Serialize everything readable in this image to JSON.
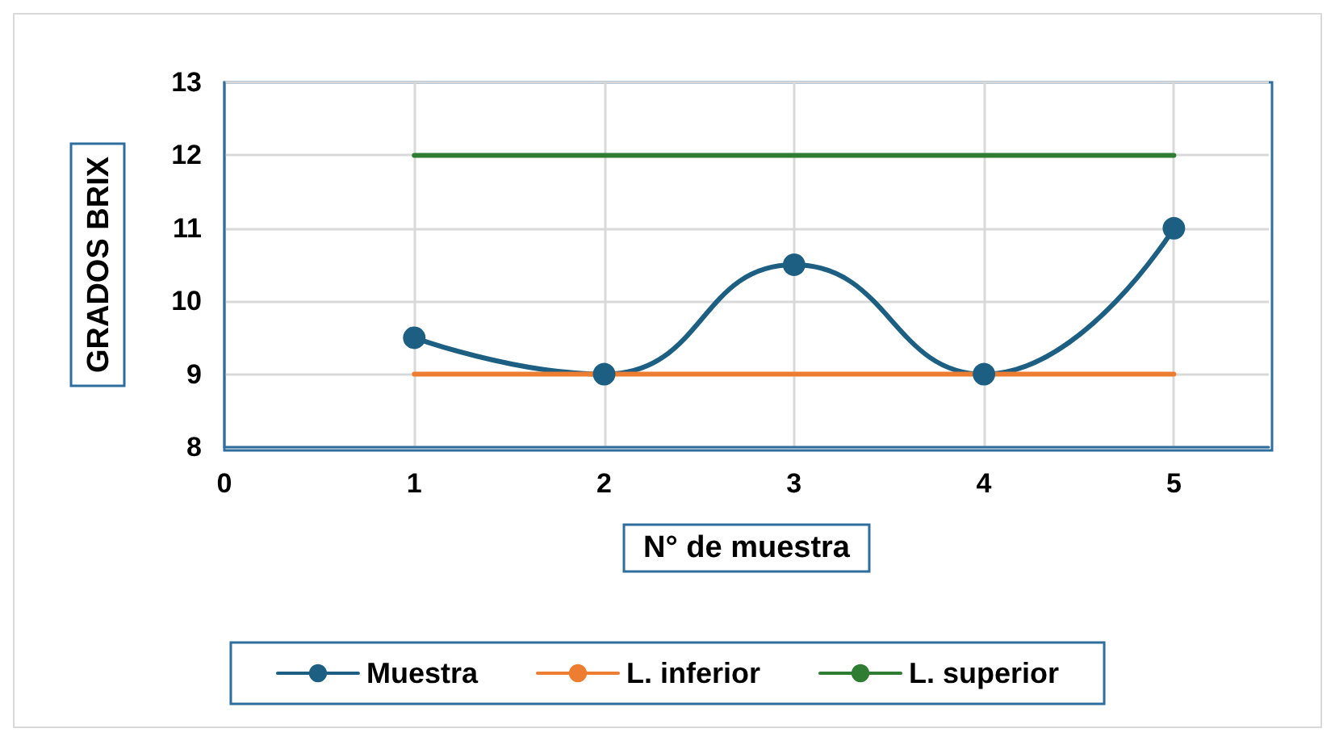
{
  "chart_data": {
    "type": "line",
    "xlabel": "N° de muestra",
    "ylabel": "GRADOS BRIX",
    "x": [
      1,
      2,
      3,
      4,
      5
    ],
    "series": [
      {
        "name": "Muestra",
        "color": "#1d5f82",
        "values": [
          9.5,
          9,
          10.5,
          9,
          11
        ],
        "marker": "circle"
      },
      {
        "name": "L. inferior",
        "color": "#ed7d31",
        "values": [
          9,
          9,
          9,
          9,
          9
        ],
        "marker": "none"
      },
      {
        "name": "L. superior",
        "color": "#2e7d32",
        "values": [
          12,
          12,
          12,
          12,
          12
        ],
        "marker": "none"
      }
    ],
    "xlim": [
      0,
      5.5
    ],
    "xticks": [
      0,
      1,
      2,
      3,
      4,
      5
    ],
    "ylim": [
      8,
      13
    ],
    "yticks": [
      8,
      9,
      10,
      11,
      12,
      13
    ],
    "grid": true,
    "legend": "bottom",
    "line_style": "solid"
  }
}
